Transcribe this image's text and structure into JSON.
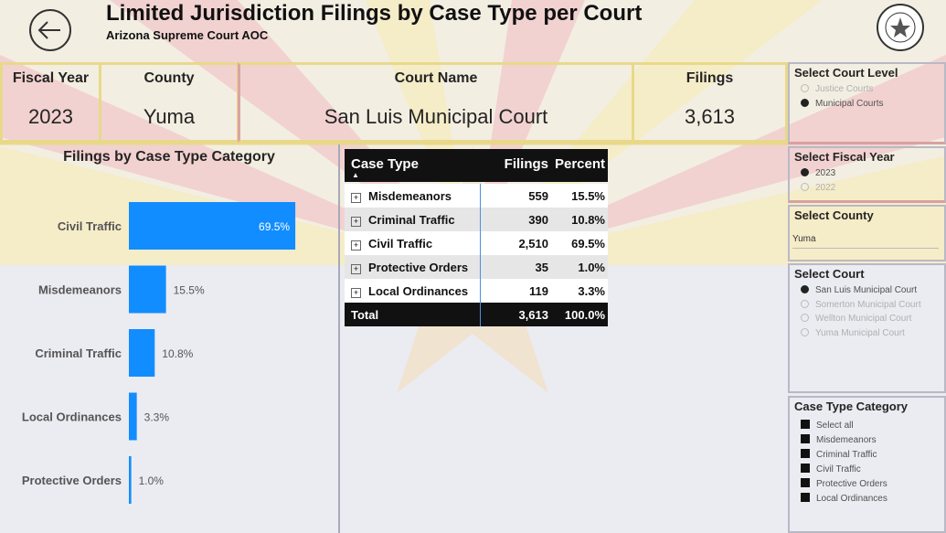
{
  "header": {
    "title": "Limited Jurisdiction Filings by Case Type per Court",
    "subtitle": "Arizona Supreme Court AOC"
  },
  "cards": [
    {
      "label": "Fiscal Year",
      "value": "2023"
    },
    {
      "label": "County",
      "value": "Yuma"
    },
    {
      "label": "Court Name",
      "value": "San Luis Municipal Court"
    },
    {
      "label": "Filings",
      "value": "3,613"
    }
  ],
  "chart_data": {
    "type": "bar",
    "orientation": "horizontal",
    "title": "Filings by Case Type Category",
    "categories": [
      "Civil Traffic",
      "Misdemeanors",
      "Criminal Traffic",
      "Local Ordinances",
      "Protective Orders"
    ],
    "values": [
      69.5,
      15.5,
      10.8,
      3.3,
      1.0
    ],
    "value_labels": [
      "69.5%",
      "15.5%",
      "10.8%",
      "3.3%",
      "1.0%"
    ],
    "color": "#118dff"
  },
  "table": {
    "columns": [
      "Case Type",
      "Filings",
      "Percent"
    ],
    "rows": [
      [
        "Misdemeanors",
        "559",
        "15.5%"
      ],
      [
        "Criminal Traffic",
        "390",
        "10.8%"
      ],
      [
        "Civil Traffic",
        "2,510",
        "69.5%"
      ],
      [
        "Protective Orders",
        "35",
        "1.0%"
      ],
      [
        "Local Ordinances",
        "119",
        "3.3%"
      ]
    ],
    "total": [
      "Total",
      "3,613",
      "100.0%"
    ]
  },
  "slicers": [
    {
      "title": "Select Court Level",
      "options": [
        {
          "label": "Justice Courts",
          "selected": false
        },
        {
          "label": "Municipal Courts",
          "selected": true
        }
      ]
    },
    {
      "title": "Select Fiscal Year",
      "options": [
        {
          "label": "2023",
          "selected": true
        },
        {
          "label": "2022",
          "selected": false
        }
      ]
    },
    {
      "title": "Select County",
      "value": "Yuma"
    },
    {
      "title": "Select Court",
      "options": [
        {
          "label": "San Luis Municipal Court",
          "selected": true
        },
        {
          "label": "Somerton Municipal Court",
          "selected": false
        },
        {
          "label": "Wellton Municipal Court",
          "selected": false
        },
        {
          "label": "Yuma Municipal Court",
          "selected": false
        }
      ]
    },
    {
      "title": "Case Type Category",
      "checkboxes": true,
      "options": [
        {
          "label": "Select all",
          "selected": true
        },
        {
          "label": "Misdemeanors",
          "selected": true
        },
        {
          "label": "Criminal Traffic",
          "selected": true
        },
        {
          "label": "Civil Traffic",
          "selected": true
        },
        {
          "label": "Protective Orders",
          "selected": true
        },
        {
          "label": "Local Ordinances",
          "selected": true
        }
      ]
    }
  ]
}
